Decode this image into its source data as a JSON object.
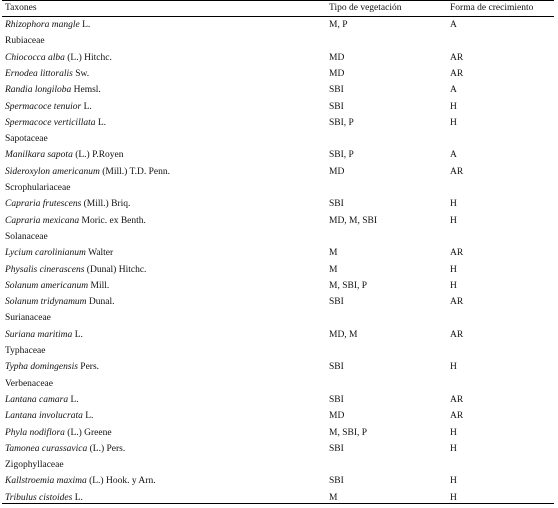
{
  "header": {
    "col1": "Taxones",
    "col2": "Tipo de vegetación",
    "col3": "Forma de crecimiento"
  },
  "rows": [
    {
      "kind": "taxon",
      "name": "Rhizophora mangle",
      "author": "L.",
      "veg": "M, P",
      "form": "A"
    },
    {
      "kind": "family",
      "name": "Rubiaceae"
    },
    {
      "kind": "taxon",
      "name": "Chiococca alba",
      "author": "(L.) Hitchc.",
      "veg": "MD",
      "form": "AR"
    },
    {
      "kind": "taxon",
      "name": "Ernodea littoralis",
      "author": "Sw.",
      "veg": "MD",
      "form": "AR"
    },
    {
      "kind": "taxon",
      "name": "Randia longiloba",
      "author": "Hemsl.",
      "veg": "SBI",
      "form": "A"
    },
    {
      "kind": "taxon",
      "name": "Spermacoce tenuior",
      "author": "L.",
      "veg": "SBI",
      "form": "H"
    },
    {
      "kind": "taxon",
      "name": "Spermacoce verticillata",
      "author": "L.",
      "veg": "SBI, P",
      "form": "H"
    },
    {
      "kind": "family",
      "name": "Sapotaceae"
    },
    {
      "kind": "taxon",
      "name": "Manilkara sapota",
      "author": "(L.) P.Royen",
      "veg": "SBI, P",
      "form": "A"
    },
    {
      "kind": "taxon",
      "name": "Sideroxylon americanum",
      "author": "(Mill.) T.D. Penn.",
      "veg": "MD",
      "form": "AR"
    },
    {
      "kind": "family",
      "name": "Scrophulariaceae"
    },
    {
      "kind": "taxon",
      "name": "Capraria frutescens",
      "author": "(Mill.) Briq.",
      "veg": "SBI",
      "form": "H"
    },
    {
      "kind": "taxon",
      "name": "Capraria mexicana",
      "author": "Moric. ex Benth.",
      "veg": "MD, M, SBI",
      "form": "H"
    },
    {
      "kind": "family",
      "name": "Solanaceae"
    },
    {
      "kind": "taxon",
      "name": "Lycium carolinianum",
      "author": "Walter",
      "veg": "M",
      "form": "AR"
    },
    {
      "kind": "taxon",
      "name": "Physalis cinerascens",
      "author": "(Dunal) Hitchc.",
      "veg": "M",
      "form": "H"
    },
    {
      "kind": "taxon",
      "name": "Solanum americanum",
      "author": "Mill.",
      "veg": "M, SBI, P",
      "form": "H"
    },
    {
      "kind": "taxon",
      "name": "Solanum tridynamum",
      "author": "Dunal.",
      "veg": "SBI",
      "form": "AR"
    },
    {
      "kind": "family",
      "name": "Surianaceae"
    },
    {
      "kind": "taxon",
      "name": "Suriana maritima",
      "author": "L.",
      "veg": "MD, M",
      "form": "AR"
    },
    {
      "kind": "family",
      "name": "Typhaceae"
    },
    {
      "kind": "taxon",
      "name": "Typha domingensis",
      "author": "Pers.",
      "veg": "SBI",
      "form": "H"
    },
    {
      "kind": "family",
      "name": "Verbenaceae"
    },
    {
      "kind": "taxon",
      "name": "Lantana camara",
      "author": "L.",
      "veg": "SBI",
      "form": "AR"
    },
    {
      "kind": "taxon",
      "name": "Lantana involucrata",
      "author": "L.",
      "veg": "MD",
      "form": "AR"
    },
    {
      "kind": "taxon",
      "name": "Phyla nodiflora",
      "author": "(L.) Greene",
      "veg": "M, SBI, P",
      "form": "H"
    },
    {
      "kind": "taxon",
      "name": "Tamonea curassavica",
      "author": "(L.) Pers.",
      "veg": "SBI",
      "form": "H"
    },
    {
      "kind": "family",
      "name": "Zigophyllaceae"
    },
    {
      "kind": "taxon",
      "name": "Kallstroemia maxima",
      "author": "(L.) Hook. y Arn.",
      "veg": "SBI",
      "form": "H"
    },
    {
      "kind": "taxon",
      "name": "Tribulus cistoides",
      "author": "L.",
      "veg": "M",
      "form": "H"
    }
  ]
}
